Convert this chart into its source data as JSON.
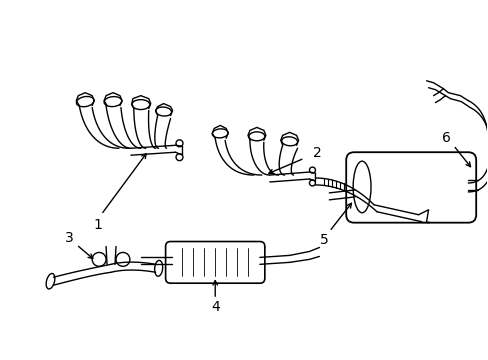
{
  "background_color": "#ffffff",
  "line_color": "#000000",
  "line_width": 1.0,
  "label_fontsize": 10,
  "figsize": [
    4.89,
    3.6
  ],
  "dpi": 100,
  "xlim": [
    0,
    489
  ],
  "ylim": [
    0,
    360
  ]
}
